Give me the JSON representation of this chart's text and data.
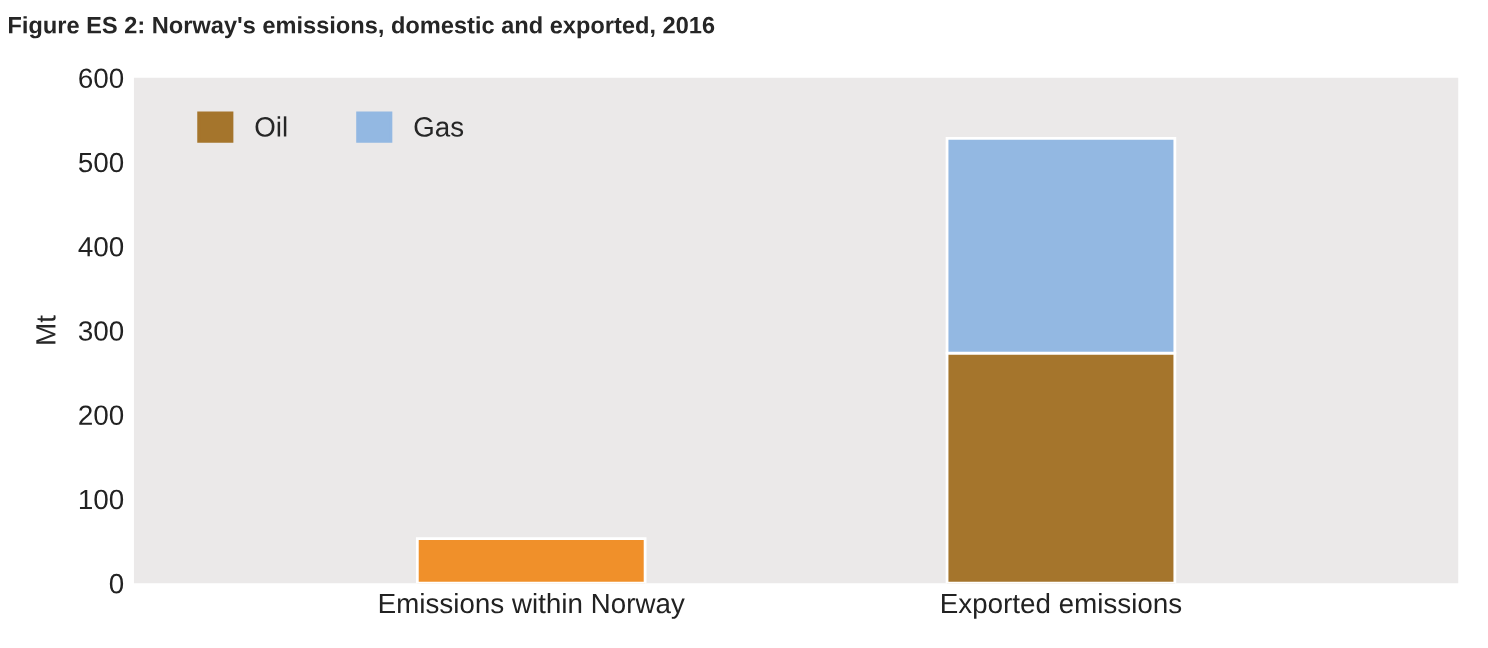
{
  "chart_data": {
    "type": "bar",
    "title": "Figure ES 2: Norway's emissions, domestic and exported, 2016",
    "ylabel": "Mt",
    "categories": [
      "Emissions within Norway",
      "Exported emissions"
    ],
    "stacked": true,
    "series": [
      {
        "color": "#f0902a",
        "values": [
          53,
          null
        ]
      },
      {
        "name": "Oil",
        "color": "#a5752c",
        "values": [
          null,
          273
        ]
      },
      {
        "name": "Gas",
        "color": "#93b8e2",
        "values": [
          null,
          255
        ]
      }
    ],
    "ylim": [
      0,
      600
    ],
    "yticks": [
      0,
      100,
      200,
      300,
      400,
      500,
      600
    ],
    "grid": false,
    "legend": "top left"
  }
}
